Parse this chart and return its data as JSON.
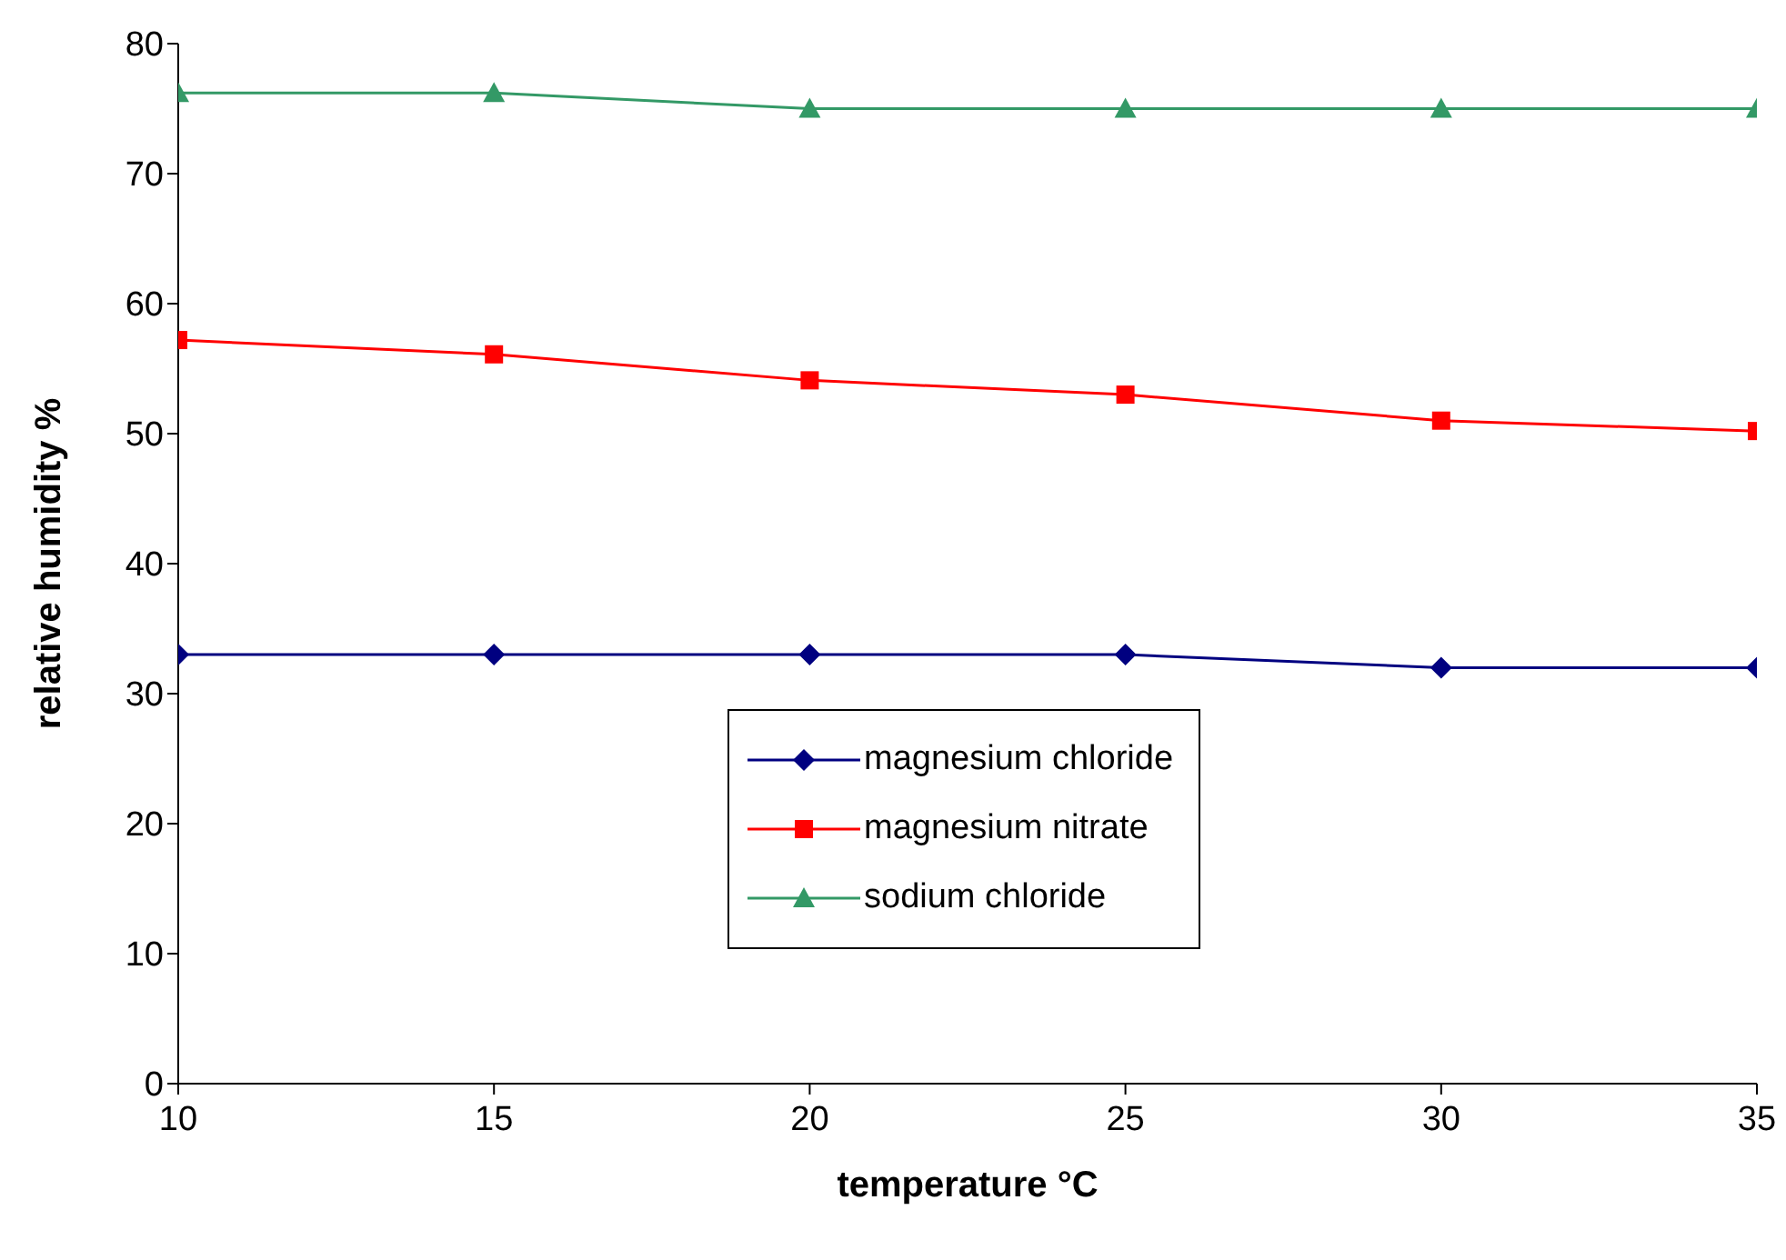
{
  "chart_data": {
    "type": "line",
    "xlabel": "temperature °C",
    "ylabel": "relative humidity %",
    "x": [
      10,
      15,
      20,
      25,
      30,
      35
    ],
    "series": [
      {
        "name": "magnesium chloride",
        "color": "#000080",
        "marker": "diamond",
        "values": [
          33,
          33,
          33,
          33,
          32,
          32
        ]
      },
      {
        "name": "magnesium nitrate",
        "color": "#ff0000",
        "marker": "square",
        "values": [
          57.2,
          56.1,
          54.1,
          53,
          51,
          50.2
        ]
      },
      {
        "name": "sodium chloride",
        "color": "#339966",
        "marker": "triangle",
        "values": [
          76.2,
          76.2,
          75,
          75,
          75,
          75
        ]
      }
    ],
    "xlim": [
      10,
      35
    ],
    "xticks": [
      10,
      15,
      20,
      25,
      30,
      35
    ],
    "ylim": [
      0,
      80
    ],
    "yticks": [
      0,
      10,
      20,
      30,
      40,
      50,
      60,
      70,
      80
    ],
    "grid": false,
    "legend": "bottom"
  }
}
